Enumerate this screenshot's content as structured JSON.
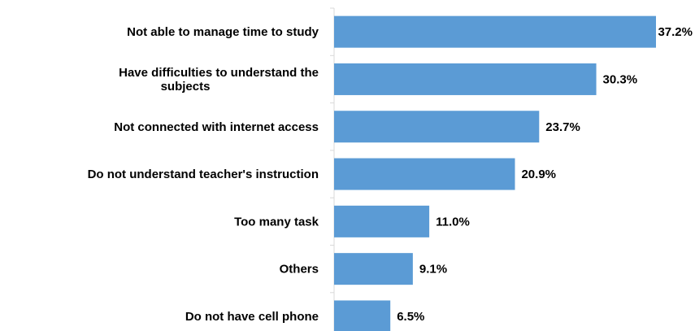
{
  "chart_data": {
    "type": "bar",
    "orientation": "horizontal",
    "categories": [
      [
        "Not able to manage time to study"
      ],
      [
        "Have difficulties to understand the",
        "subjects"
      ],
      [
        "Not connected with internet access"
      ],
      [
        "Do not understand teacher's instruction"
      ],
      [
        "Too many task"
      ],
      [
        "Others"
      ],
      [
        "Do not have cell phone"
      ]
    ],
    "values": [
      37.2,
      30.3,
      23.7,
      20.9,
      11.0,
      9.1,
      6.5
    ],
    "value_labels": [
      "37.2%",
      "30.3%",
      "23.7%",
      "20.9%",
      "11.0%",
      "9.1%",
      "6.5%"
    ],
    "title": "",
    "xlabel": "",
    "ylabel": "",
    "xlim": [
      0,
      37.2
    ],
    "grid": false,
    "legend": "none",
    "bar_color": "#5b9bd5",
    "axis_color": "#d9d9d9"
  }
}
